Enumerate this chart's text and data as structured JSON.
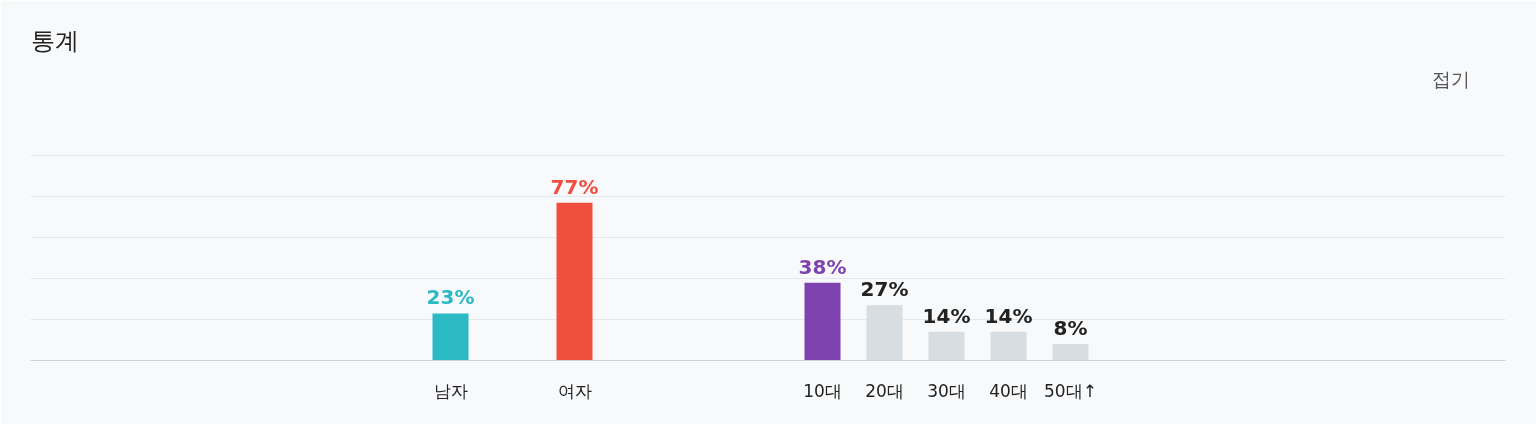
{
  "chart_data": {
    "type": "bar",
    "title": "통계",
    "annotations": [
      "접기"
    ],
    "categories": [
      "남자",
      null,
      "여자",
      null,
      null,
      null,
      "10대",
      "20대",
      "30대",
      "40대",
      "50대↑"
    ],
    "values": [
      23,
      null,
      77,
      null,
      null,
      null,
      38,
      27,
      14,
      14,
      8
    ],
    "colors": [
      "#2bb9c4",
      null,
      "#f04e3e",
      null,
      null,
      null,
      "#7f43b0",
      "#d8dde2",
      "#d8dde2",
      "#d8dde2",
      "#d8dde2"
    ],
    "value_labels": [
      "23%",
      null,
      "77%",
      null,
      null,
      null,
      "38%",
      "27%",
      "14%",
      "14%",
      "8%"
    ],
    "ylim": [
      0,
      127
    ],
    "yticks": [
      {
        "value": 0,
        "label": null
      },
      {
        "value": 20,
        "label": null
      },
      {
        "value": 40,
        "label": null
      },
      {
        "value": 60,
        "label": null
      },
      {
        "value": 80,
        "label": null
      },
      {
        "value": 100,
        "label": null
      }
    ],
    "grid": "y",
    "tick_labels": "x"
  }
}
